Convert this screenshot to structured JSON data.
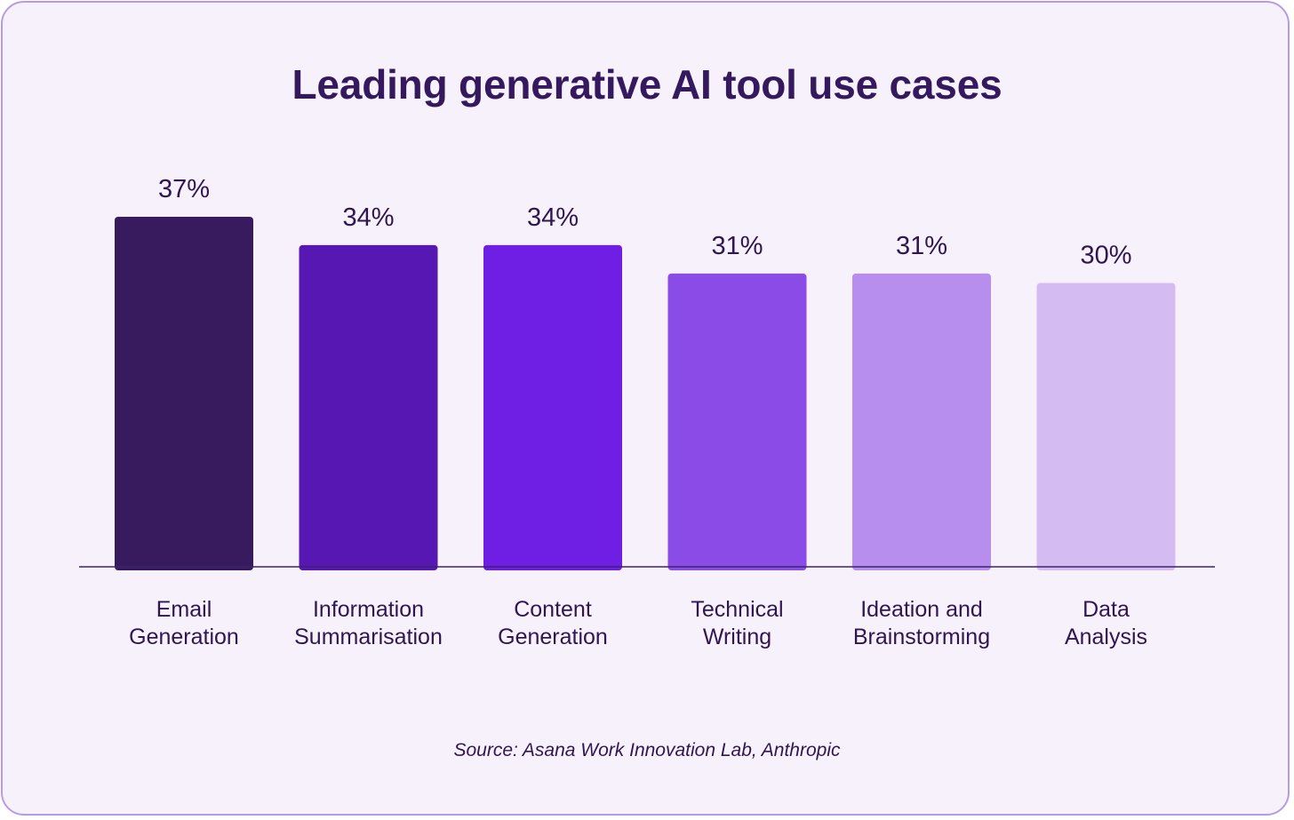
{
  "chart_data": {
    "type": "bar",
    "title": "Leading generative AI tool use cases",
    "categories": [
      "Email Generation",
      "Information Summarisation",
      "Content Generation",
      "Technical Writing",
      "Ideation and Brainstorming",
      "Data Analysis"
    ],
    "category_lines": [
      [
        "Email",
        "Generation"
      ],
      [
        "Information",
        "Summarisation"
      ],
      [
        "Content",
        "Generation"
      ],
      [
        "Technical",
        "Writing"
      ],
      [
        "Ideation and",
        "Brainstorming"
      ],
      [
        "Data",
        "Analysis"
      ]
    ],
    "values": [
      37,
      34,
      34,
      31,
      31,
      30
    ],
    "value_labels": [
      "37%",
      "34%",
      "34%",
      "31%",
      "31%",
      "30%"
    ],
    "bar_colors": [
      "#381a5e",
      "#5717b3",
      "#6e1fe3",
      "#8b4be6",
      "#b78dee",
      "#d4bcf3"
    ],
    "ylim": [
      0,
      40
    ],
    "grid": false,
    "legend": "none",
    "source": "Source: Asana Work Innovation Lab, Anthropic"
  },
  "colors": {
    "background": "#f7f1fb",
    "border": "#b89be6",
    "text": "#2f1651"
  }
}
